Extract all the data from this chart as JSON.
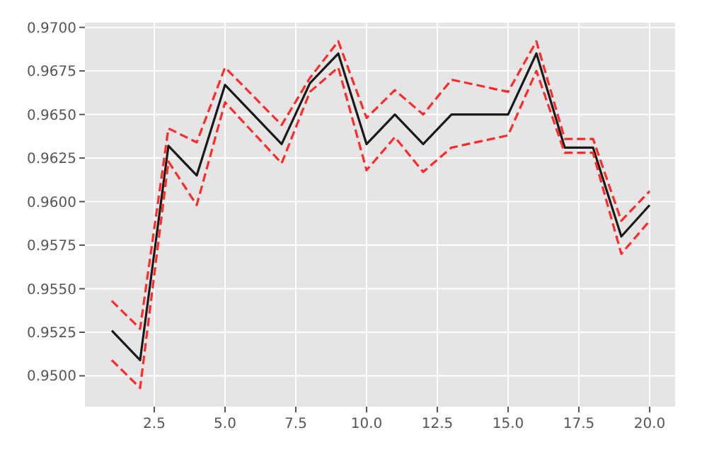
{
  "chart_data": {
    "type": "line",
    "x": [
      1,
      2,
      3,
      4,
      5,
      7,
      8,
      9,
      10,
      11,
      12,
      13,
      15,
      16,
      17,
      18,
      19,
      20
    ],
    "series": [
      {
        "color": "#1a1a1a",
        "line_style": "solid",
        "values": [
          0.9526,
          0.9509,
          0.9632,
          0.9615,
          0.9667,
          0.9633,
          0.9668,
          0.9685,
          0.9633,
          0.965,
          0.9633,
          0.965,
          0.965,
          0.9685,
          0.9631,
          0.9631,
          0.958,
          0.9598
        ]
      },
      {
        "color": "#ff2a2a",
        "line_style": "dashed",
        "values": [
          0.9543,
          0.9527,
          0.9642,
          0.9634,
          0.9677,
          0.9644,
          0.9671,
          0.9692,
          0.9648,
          0.9664,
          0.965,
          0.967,
          0.9663,
          0.9692,
          0.9636,
          0.9636,
          0.9589,
          0.9606
        ]
      },
      {
        "color": "#ff2a2a",
        "line_style": "dashed",
        "values": [
          0.9509,
          0.9493,
          0.9623,
          0.9598,
          0.9657,
          0.9622,
          0.9663,
          0.9677,
          0.9618,
          0.9637,
          0.9617,
          0.9631,
          0.9638,
          0.9675,
          0.9628,
          0.9628,
          0.957,
          0.9589
        ]
      }
    ],
    "xlim": [
      0.05,
      20.9
    ],
    "ylim": [
      0.94823,
      0.97027
    ],
    "xticks": [
      2.5,
      {
        "value": 5,
        "label": "5.0"
      },
      7.5,
      {
        "value": 10,
        "label": "10.0"
      },
      12.5,
      {
        "value": 15,
        "label": "15.0"
      },
      17.5,
      {
        "value": 20,
        "label": "20.0"
      }
    ],
    "yticks": [
      {
        "value": 0.95,
        "label": "0.9500"
      },
      {
        "value": 0.9525,
        "label": "0.9525"
      },
      {
        "value": 0.955,
        "label": "0.9550"
      },
      {
        "value": 0.9575,
        "label": "0.9575"
      },
      {
        "value": 0.96,
        "label": "0.9600"
      },
      {
        "value": 0.9625,
        "label": "0.9625"
      },
      {
        "value": 0.965,
        "label": "0.9650"
      },
      {
        "value": 0.9675,
        "label": "0.9675"
      },
      {
        "value": 0.97,
        "label": "0.9700"
      }
    ],
    "grid": true
  }
}
